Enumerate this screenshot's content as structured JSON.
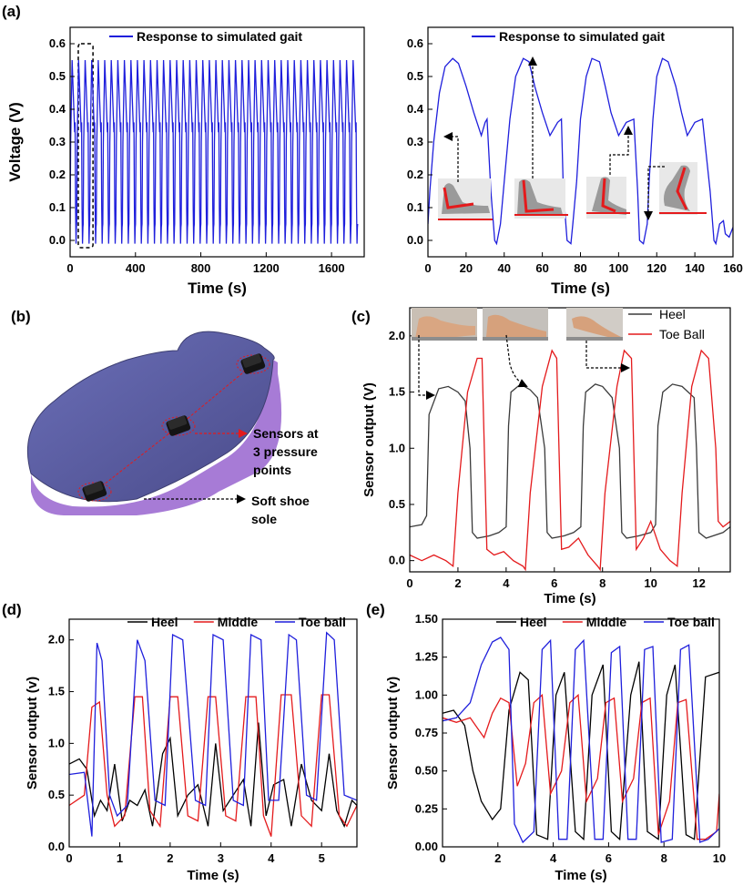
{
  "panels": {
    "a": "(a)",
    "b": "(b)",
    "c": "(c)",
    "d": "(d)",
    "e": "(e)"
  },
  "insole": {
    "label_sensors_1": "Sensors at",
    "label_sensors_2": "3 pressure",
    "label_sensors_3": "points",
    "label_sole_1": "Soft shoe",
    "label_sole_2": "sole",
    "sole_color": "#5a5c9e",
    "edge_color": "#a77bd6"
  },
  "chart_data": [
    {
      "id": "a_left",
      "type": "line",
      "xlabel": "Time (s)",
      "ylabel": "Voltage (V)",
      "xlim": [
        0,
        1800
      ],
      "ylim": [
        -0.05,
        0.65
      ],
      "xticks": [
        0,
        400,
        800,
        1200,
        1600
      ],
      "yticks": [
        0.0,
        0.1,
        0.2,
        0.3,
        0.4,
        0.5,
        0.6
      ],
      "series": [
        {
          "name": "Response to simulated gait",
          "color": "#1f1fdc",
          "pattern": {
            "period_s": 40,
            "count": 44,
            "start_s": 0,
            "end_s": 1760,
            "peak_v": 0.55,
            "shoulder_v": 0.33,
            "trough_v": -0.01
          }
        }
      ],
      "highlight_box_x": [
        50,
        140
      ]
    },
    {
      "id": "a_right",
      "type": "line",
      "xlabel": "Time (s)",
      "ylabel": "",
      "xlim": [
        0,
        160
      ],
      "ylim": [
        -0.05,
        0.65
      ],
      "xticks": [
        0,
        20,
        40,
        60,
        80,
        100,
        120,
        140,
        160
      ],
      "yticks": [
        0.0,
        0.1,
        0.2,
        0.3,
        0.4,
        0.5,
        0.6
      ],
      "series": [
        {
          "name": "Response to simulated gait",
          "color": "#1f1fdc",
          "x": [
            0,
            1,
            3,
            6,
            9,
            13,
            16,
            20,
            24,
            28,
            30,
            31,
            33,
            35,
            36,
            38,
            40,
            43,
            46,
            50,
            53,
            56,
            60,
            64,
            68,
            70,
            71,
            73,
            75,
            76,
            78,
            80,
            83,
            86,
            90,
            93,
            96,
            100,
            104,
            108,
            110,
            111,
            113,
            115,
            116,
            118,
            120,
            123,
            126,
            130,
            133,
            136,
            140,
            144,
            148,
            150,
            151,
            153,
            155,
            156,
            158,
            160
          ],
          "y": [
            0.05,
            0.15,
            0.3,
            0.45,
            0.53,
            0.555,
            0.54,
            0.47,
            0.39,
            0.32,
            0.36,
            0.37,
            0.15,
            0.0,
            -0.01,
            0.05,
            0.18,
            0.37,
            0.5,
            0.555,
            0.545,
            0.47,
            0.39,
            0.32,
            0.36,
            0.37,
            0.15,
            0.0,
            -0.01,
            0.05,
            0.18,
            0.37,
            0.5,
            0.555,
            0.545,
            0.47,
            0.39,
            0.32,
            0.36,
            0.37,
            0.15,
            0.0,
            -0.01,
            0.05,
            0.18,
            0.37,
            0.5,
            0.555,
            0.545,
            0.47,
            0.39,
            0.32,
            0.36,
            0.37,
            0.15,
            0.0,
            -0.01,
            0.05,
            0.06,
            0.02,
            0.01,
            0.04
          ]
        }
      ]
    },
    {
      "id": "c",
      "type": "line",
      "xlabel": "Time (s)",
      "ylabel": "Sensor output (V)",
      "xlim": [
        0,
        13.3
      ],
      "ylim": [
        -0.1,
        2.25
      ],
      "xticks": [
        0,
        2,
        4,
        6,
        8,
        10,
        12
      ],
      "yticks": [
        0.0,
        0.5,
        1.0,
        1.5,
        2.0
      ],
      "series": [
        {
          "name": "Heel",
          "color": "#3a3a3a",
          "x": [
            0,
            0.5,
            0.7,
            0.8,
            1.2,
            1.6,
            2.0,
            2.3,
            2.5,
            2.6,
            2.8,
            3.3,
            3.7,
            4.0,
            4.1,
            4.2,
            4.6,
            5.0,
            5.3,
            5.6,
            5.7,
            5.9,
            6.4,
            6.8,
            7.1,
            7.2,
            7.3,
            7.7,
            8.0,
            8.4,
            8.7,
            8.8,
            9.0,
            9.5,
            10.0,
            10.2,
            10.3,
            10.5,
            10.9,
            11.3,
            11.8,
            11.9,
            12.0,
            12.3,
            13.0,
            13.3
          ],
          "y": [
            0.3,
            0.32,
            0.4,
            1.3,
            1.53,
            1.55,
            1.5,
            1.42,
            1.0,
            0.25,
            0.2,
            0.22,
            0.25,
            0.3,
            1.2,
            1.5,
            1.57,
            1.52,
            1.45,
            1.0,
            0.25,
            0.2,
            0.22,
            0.25,
            0.3,
            1.2,
            1.5,
            1.57,
            1.55,
            1.45,
            1.0,
            0.25,
            0.2,
            0.22,
            0.25,
            0.32,
            1.2,
            1.5,
            1.57,
            1.55,
            1.45,
            1.0,
            0.25,
            0.2,
            0.25,
            0.3
          ]
        },
        {
          "name": "Toe Ball",
          "color": "#e41a1c",
          "x": [
            0,
            0.5,
            1.0,
            1.5,
            1.8,
            2.0,
            2.4,
            2.8,
            3.0,
            3.2,
            3.5,
            3.9,
            4.3,
            4.7,
            4.8,
            5.0,
            5.5,
            5.9,
            6.1,
            6.3,
            6.6,
            7.0,
            7.4,
            7.8,
            7.9,
            8.1,
            8.6,
            8.9,
            9.2,
            9.4,
            9.7,
            10.0,
            10.4,
            10.8,
            11.1,
            11.3,
            11.7,
            12.1,
            12.4,
            12.7,
            12.8,
            13.0,
            13.3
          ],
          "y": [
            0.05,
            0.0,
            0.05,
            0.0,
            -0.05,
            0.6,
            1.5,
            1.8,
            1.8,
            0.1,
            0.05,
            0.08,
            0.0,
            -0.05,
            -0.08,
            0.6,
            1.55,
            1.87,
            1.8,
            0.1,
            0.12,
            0.2,
            0.05,
            -0.05,
            -0.08,
            0.6,
            1.55,
            1.87,
            1.8,
            0.1,
            0.2,
            0.35,
            0.1,
            0.0,
            -0.05,
            0.6,
            1.55,
            1.87,
            1.8,
            1.0,
            0.35,
            0.3,
            0.35
          ]
        }
      ],
      "legend": [
        "Heel",
        "Toe Ball"
      ]
    },
    {
      "id": "d",
      "type": "line",
      "xlabel": "Time (s)",
      "ylabel": "Sensor output (v)",
      "xlim": [
        0,
        5.7
      ],
      "ylim": [
        0,
        2.2
      ],
      "xticks": [
        0,
        1,
        2,
        3,
        4,
        5
      ],
      "yticks": [
        0.0,
        0.5,
        1.0,
        1.5,
        2.0
      ],
      "series": [
        {
          "name": "Heel",
          "color": "#000000",
          "x": [
            0,
            0.2,
            0.35,
            0.5,
            0.62,
            0.75,
            0.9,
            1.05,
            1.2,
            1.35,
            1.5,
            1.65,
            1.85,
            2.0,
            2.15,
            2.35,
            2.55,
            2.75,
            2.9,
            3.05,
            3.25,
            3.45,
            3.6,
            3.75,
            3.9,
            4.05,
            4.25,
            4.4,
            4.6,
            4.8,
            5.0,
            5.15,
            5.3,
            5.45,
            5.6,
            5.7
          ],
          "y": [
            0.8,
            0.85,
            0.75,
            0.3,
            0.45,
            0.35,
            0.8,
            0.25,
            0.45,
            0.4,
            0.55,
            0.2,
            0.9,
            1.05,
            0.3,
            0.5,
            0.6,
            0.2,
            1.0,
            0.35,
            0.5,
            0.65,
            0.2,
            1.2,
            0.3,
            0.6,
            0.65,
            0.2,
            0.8,
            0.45,
            0.35,
            0.9,
            0.35,
            0.2,
            0.45,
            0.4
          ]
        },
        {
          "name": "Middle",
          "color": "#e41a1c",
          "x": [
            0,
            0.3,
            0.45,
            0.6,
            0.75,
            0.9,
            1.1,
            1.3,
            1.45,
            1.6,
            1.8,
            2.0,
            2.15,
            2.35,
            2.55,
            2.75,
            2.9,
            3.1,
            3.3,
            3.5,
            3.7,
            3.85,
            4.0,
            4.2,
            4.4,
            4.6,
            4.8,
            5.0,
            5.15,
            5.35,
            5.5,
            5.7
          ],
          "y": [
            0.4,
            0.5,
            1.35,
            1.4,
            0.5,
            0.2,
            0.3,
            1.45,
            1.45,
            0.35,
            0.2,
            1.45,
            1.45,
            0.3,
            0.25,
            1.45,
            1.45,
            0.3,
            0.25,
            1.45,
            1.45,
            0.3,
            0.1,
            1.47,
            1.47,
            0.3,
            0.2,
            1.47,
            1.47,
            0.3,
            0.2,
            0.4
          ]
        },
        {
          "name": "Toe ball",
          "color": "#1f1fdc",
          "x": [
            0,
            0.3,
            0.45,
            0.55,
            0.65,
            0.8,
            0.95,
            1.15,
            1.35,
            1.5,
            1.7,
            1.9,
            2.05,
            2.25,
            2.5,
            2.7,
            2.85,
            3.05,
            3.25,
            3.45,
            3.6,
            3.8,
            3.95,
            4.15,
            4.35,
            4.5,
            4.7,
            4.9,
            5.1,
            5.25,
            5.45,
            5.7
          ],
          "y": [
            0.7,
            0.72,
            0.1,
            1.97,
            1.8,
            0.5,
            0.3,
            0.4,
            2.0,
            1.8,
            0.45,
            0.4,
            2.05,
            2.0,
            0.45,
            0.4,
            2.05,
            2.0,
            0.45,
            0.4,
            2.05,
            2.0,
            0.45,
            0.45,
            2.05,
            2.0,
            0.5,
            0.45,
            2.07,
            2.0,
            0.5,
            0.45
          ]
        }
      ],
      "legend": [
        "Heel",
        "Middle",
        "Toe ball"
      ]
    },
    {
      "id": "e",
      "type": "line",
      "xlabel": "Time (s)",
      "ylabel": "Sensor output (v)",
      "xlim": [
        0,
        10
      ],
      "ylim": [
        0,
        1.5
      ],
      "xticks": [
        0,
        2,
        4,
        6,
        8,
        10
      ],
      "yticks": [
        0.0,
        0.25,
        0.5,
        0.75,
        1.0,
        1.25,
        1.5
      ],
      "yticklabels": [
        "0.00",
        "0.25",
        "0.50",
        "0.75",
        "1.00",
        "1.25",
        "1.50"
      ],
      "series": [
        {
          "name": "Heel",
          "color": "#000000",
          "x": [
            0,
            0.4,
            0.8,
            1.1,
            1.4,
            1.8,
            2.1,
            2.4,
            2.8,
            3.1,
            3.4,
            3.8,
            4.1,
            4.4,
            4.8,
            5.1,
            5.4,
            5.8,
            6.1,
            6.4,
            6.8,
            7.1,
            7.4,
            7.8,
            8.1,
            8.4,
            8.8,
            9.1,
            9.5,
            10.0
          ],
          "y": [
            0.88,
            0.9,
            0.8,
            0.5,
            0.3,
            0.18,
            0.25,
            0.9,
            1.15,
            1.1,
            0.08,
            0.05,
            1.0,
            1.15,
            0.1,
            0.05,
            1.0,
            1.2,
            0.1,
            0.05,
            1.0,
            1.22,
            0.1,
            0.05,
            1.0,
            1.2,
            0.08,
            0.05,
            1.12,
            1.15
          ]
        },
        {
          "name": "Middle",
          "color": "#e41a1c",
          "x": [
            0,
            0.5,
            1.0,
            1.5,
            1.8,
            2.1,
            2.4,
            2.7,
            3.0,
            3.3,
            3.6,
            3.9,
            4.3,
            4.6,
            4.9,
            5.2,
            5.6,
            5.9,
            6.2,
            6.5,
            6.9,
            7.2,
            7.5,
            7.8,
            8.2,
            8.5,
            8.8,
            9.2,
            9.5,
            9.9,
            10.0
          ],
          "y": [
            0.85,
            0.82,
            0.85,
            0.72,
            0.88,
            0.98,
            0.95,
            0.4,
            0.55,
            0.95,
            1.0,
            0.35,
            0.5,
            0.95,
            1.0,
            0.3,
            0.45,
            0.95,
            0.98,
            0.3,
            0.45,
            0.95,
            0.98,
            0.08,
            0.3,
            0.95,
            0.97,
            0.05,
            0.05,
            0.1,
            0.35
          ]
        },
        {
          "name": "Toe ball",
          "color": "#1f1fdc",
          "x": [
            0,
            0.5,
            1.0,
            1.4,
            1.8,
            2.1,
            2.4,
            2.6,
            2.9,
            3.3,
            3.6,
            3.9,
            4.2,
            4.5,
            4.8,
            5.1,
            5.5,
            5.8,
            6.1,
            6.4,
            6.7,
            7.0,
            7.3,
            7.6,
            7.9,
            8.3,
            8.6,
            8.9,
            9.3,
            9.6,
            10.0
          ],
          "y": [
            0.83,
            0.85,
            0.95,
            1.2,
            1.35,
            1.38,
            1.3,
            0.15,
            0.03,
            0.1,
            1.3,
            1.36,
            0.05,
            0.05,
            1.3,
            1.36,
            0.05,
            0.05,
            1.28,
            1.32,
            0.05,
            0.05,
            1.3,
            1.32,
            0.03,
            0.05,
            1.3,
            1.33,
            0.03,
            0.05,
            0.12
          ]
        }
      ],
      "legend": [
        "Heel",
        "Middle",
        "Toe ball"
      ]
    }
  ]
}
